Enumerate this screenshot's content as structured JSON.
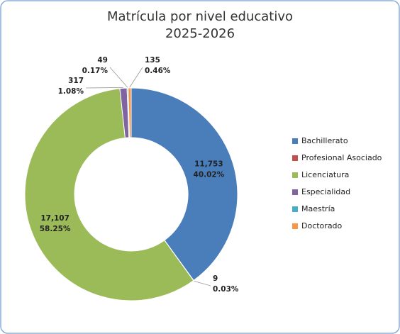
{
  "chart_data": {
    "type": "donut",
    "title": "Matrícula por nivel educativo",
    "subtitle": "2025-2026",
    "categories": [
      "Bachillerato",
      "Profesional Asociado",
      "Licenciatura",
      "Especialidad",
      "Maestría",
      "Doctorado"
    ],
    "values": [
      11753,
      9,
      17107,
      317,
      49,
      135
    ],
    "value_labels": [
      "11,753",
      "9",
      "17,107",
      "317",
      "49",
      "135"
    ],
    "percent_labels": [
      "40.02%",
      "0.03%",
      "58.25%",
      "1.08%",
      "0.17%",
      "0.46%"
    ],
    "colors": [
      "#4a7ebb",
      "#c0504d",
      "#9bbb59",
      "#8064a2",
      "#4bacc6",
      "#f79646"
    ],
    "legend": "right"
  }
}
